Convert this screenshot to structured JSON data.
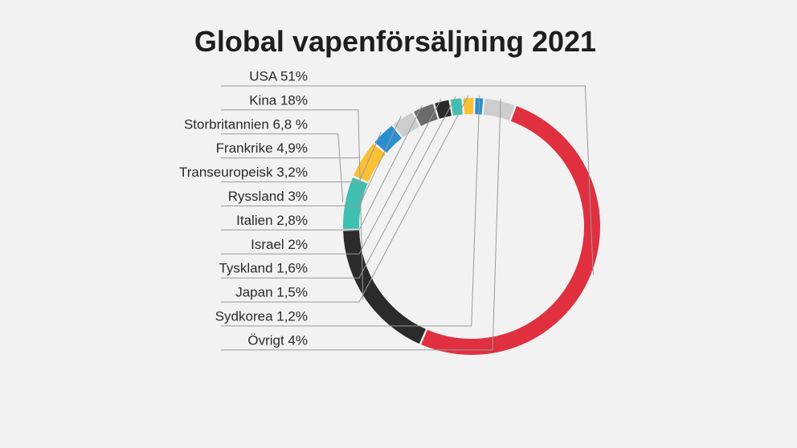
{
  "chart_data": {
    "type": "pie",
    "title": "Global vapenförsäljning 2021",
    "donut": true,
    "legend": "left",
    "slices": [
      {
        "label": "USA 51%",
        "value": 51,
        "color": "#e0303f"
      },
      {
        "label": "Kina 18%",
        "value": 18,
        "color": "#2b2b2b"
      },
      {
        "label": "Storbritannien 6,8 %",
        "value": 6.8,
        "color": "#3ebfb1"
      },
      {
        "label": "Frankrike 4,9%",
        "value": 4.9,
        "color": "#fbc033"
      },
      {
        "label": "Transeuropeisk 3,2%",
        "value": 3.2,
        "color": "#2a8fd0"
      },
      {
        "label": "Ryssland 3%",
        "value": 3,
        "color": "#cdcdcd"
      },
      {
        "label": "Italien 2,8%",
        "value": 2.8,
        "color": "#6b6b6b"
      },
      {
        "label": "Israel 2%",
        "value": 2,
        "color": "#2b2b2b"
      },
      {
        "label": "Tyskland 1,6%",
        "value": 1.6,
        "color": "#3ebfb1"
      },
      {
        "label": "Japan 1,5%",
        "value": 1.5,
        "color": "#fbc033"
      },
      {
        "label": "Sydkorea 1,2%",
        "value": 1.2,
        "color": "#2a8fd0"
      },
      {
        "label": "Övrigt 4%",
        "value": 4,
        "color": "#cdcdcd"
      }
    ]
  }
}
